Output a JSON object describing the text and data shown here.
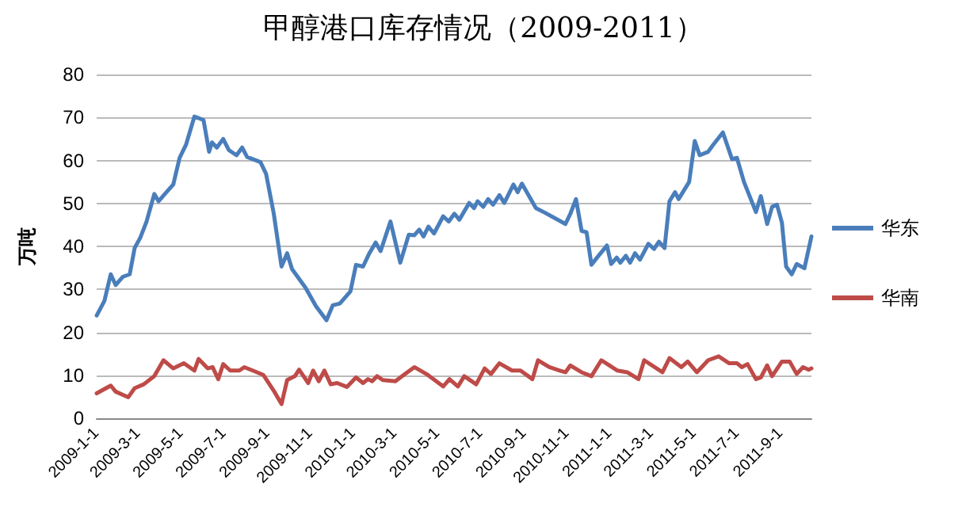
{
  "chart_data": {
    "type": "line",
    "title": "甲醇港口库存情况（2009-2011）",
    "ylabel": "万吨",
    "xlim": [
      "2009-01-01",
      "2011-10-15"
    ],
    "xticks": [
      {
        "value": "2009-01-01",
        "label": "2009-1-1"
      },
      {
        "value": "2009-03-01",
        "label": "2009-3-1"
      },
      {
        "value": "2009-05-01",
        "label": "2009-5-1"
      },
      {
        "value": "2009-07-01",
        "label": "2009-7-1"
      },
      {
        "value": "2009-09-01",
        "label": "2009-9-1"
      },
      {
        "value": "2009-11-01",
        "label": "2009-11-1"
      },
      {
        "value": "2010-01-01",
        "label": "2010-1-1"
      },
      {
        "value": "2010-03-01",
        "label": "2010-3-1"
      },
      {
        "value": "2010-05-01",
        "label": "2010-5-1"
      },
      {
        "value": "2010-07-01",
        "label": "2010-7-1"
      },
      {
        "value": "2010-09-01",
        "label": "2010-9-1"
      },
      {
        "value": "2010-11-01",
        "label": "2010-11-1"
      },
      {
        "value": "2011-01-01",
        "label": "2011-1-1"
      },
      {
        "value": "2011-03-01",
        "label": "2011-3-1"
      },
      {
        "value": "2011-05-01",
        "label": "2011-5-1"
      },
      {
        "value": "2011-07-01",
        "label": "2011-7-1"
      },
      {
        "value": "2011-09-01",
        "label": "2011-9-1"
      }
    ],
    "ylim": [
      0,
      80
    ],
    "yticks": [
      0,
      10,
      20,
      30,
      40,
      50,
      60,
      70,
      80
    ],
    "grid": "y",
    "legend": "right",
    "marker": "none",
    "line_style": "solid",
    "series": [
      {
        "name": "华东",
        "color": "#4a7ebb",
        "x": [
          "2009-01-01",
          "2009-01-12",
          "2009-01-21",
          "2009-01-28",
          "2009-02-07",
          "2009-02-17",
          "2009-02-24",
          "2009-03-04",
          "2009-03-13",
          "2009-03-24",
          "2009-03-30",
          "2009-04-08",
          "2009-04-20",
          "2009-04-29",
          "2009-05-08",
          "2009-05-20",
          "2009-06-02",
          "2009-06-10",
          "2009-06-14",
          "2009-06-21",
          "2009-06-30",
          "2009-07-08",
          "2009-07-19",
          "2009-07-27",
          "2009-08-03",
          "2009-08-22",
          "2009-08-30",
          "2009-09-10",
          "2009-09-21",
          "2009-09-29",
          "2009-10-06",
          "2009-10-25",
          "2009-11-09",
          "2009-11-24",
          "2009-12-03",
          "2009-12-13",
          "2009-12-28",
          "2010-01-05",
          "2010-01-15",
          "2010-01-24",
          "2010-02-02",
          "2010-02-09",
          "2010-02-23",
          "2010-03-09",
          "2010-03-21",
          "2010-03-29",
          "2010-04-05",
          "2010-04-11",
          "2010-04-18",
          "2010-04-26",
          "2010-05-09",
          "2010-05-17",
          "2010-05-25",
          "2010-06-01",
          "2010-06-15",
          "2010-06-22",
          "2010-06-27",
          "2010-07-05",
          "2010-07-12",
          "2010-07-19",
          "2010-07-28",
          "2010-08-04",
          "2010-08-17",
          "2010-08-23",
          "2010-08-29",
          "2010-09-18",
          "2010-09-30",
          "2010-10-30",
          "2010-11-06",
          "2010-11-14",
          "2010-11-22",
          "2010-11-29",
          "2010-12-06",
          "2010-12-14",
          "2010-12-28",
          "2011-01-03",
          "2011-01-11",
          "2011-01-16",
          "2011-01-24",
          "2011-01-30",
          "2011-02-06",
          "2011-02-13",
          "2011-02-25",
          "2011-03-05",
          "2011-03-12",
          "2011-03-20",
          "2011-03-27",
          "2011-04-04",
          "2011-04-09",
          "2011-04-24",
          "2011-05-02",
          "2011-05-09",
          "2011-05-21",
          "2011-05-28",
          "2011-06-11",
          "2011-06-24",
          "2011-07-01",
          "2011-07-11",
          "2011-07-28",
          "2011-08-04",
          "2011-08-13",
          "2011-08-20",
          "2011-08-27",
          "2011-09-03",
          "2011-09-09",
          "2011-09-17",
          "2011-09-24",
          "2011-10-05",
          "2011-10-15"
        ],
        "values": [
          23.9,
          27.3,
          33.5,
          31,
          32.9,
          33.5,
          39.6,
          42,
          45.8,
          52.2,
          50.5,
          52.2,
          54.4,
          60.6,
          63.6,
          70.2,
          69.4,
          62,
          64.2,
          63,
          65,
          62.4,
          61.2,
          63,
          60.8,
          59.6,
          56.9,
          47.6,
          35.3,
          38.4,
          34.7,
          30.4,
          26.1,
          22.8,
          26.3,
          26.7,
          29.5,
          35.7,
          35.3,
          38.4,
          40.9,
          38.9,
          45.8,
          36.2,
          42.7,
          42.6,
          43.9,
          42.3,
          44.6,
          43,
          47,
          45.8,
          47.6,
          46.2,
          50.1,
          48.9,
          50.5,
          49.2,
          51,
          49.7,
          51.9,
          50.1,
          54.4,
          52.6,
          54.6,
          48.9,
          47.9,
          45.2,
          47.6,
          51,
          43.6,
          43.3,
          35.7,
          37.4,
          40.2,
          35.9,
          37.4,
          36.2,
          37.8,
          36.2,
          38.4,
          36.9,
          40.6,
          39.4,
          41.1,
          39.6,
          50.5,
          52.6,
          51,
          55,
          64.5,
          61.2,
          62,
          63.6,
          66.5,
          60.3,
          60.6,
          55,
          48,
          51.7,
          45.2,
          49.2,
          49.7,
          45.5,
          35.3,
          33.5,
          35.9,
          34.9,
          42.3
        ]
      },
      {
        "name": "华南",
        "color": "#be4b48",
        "x": [
          "2009-01-01",
          "2009-01-21",
          "2009-01-28",
          "2009-02-15",
          "2009-02-24",
          "2009-03-09",
          "2009-03-24",
          "2009-04-06",
          "2009-04-20",
          "2009-05-05",
          "2009-05-20",
          "2009-05-26",
          "2009-06-08",
          "2009-06-15",
          "2009-06-23",
          "2009-06-30",
          "2009-07-10",
          "2009-07-23",
          "2009-07-30",
          "2009-08-11",
          "2009-08-26",
          "2009-09-10",
          "2009-09-21",
          "2009-09-29",
          "2009-10-10",
          "2009-10-16",
          "2009-10-29",
          "2009-11-05",
          "2009-11-13",
          "2009-11-21",
          "2009-11-30",
          "2009-12-09",
          "2009-12-23",
          "2010-01-05",
          "2010-01-15",
          "2010-01-22",
          "2010-01-28",
          "2010-02-04",
          "2010-02-12",
          "2010-03-02",
          "2010-03-14",
          "2010-03-29",
          "2010-04-17",
          "2010-05-09",
          "2010-05-18",
          "2010-05-30",
          "2010-06-08",
          "2010-06-25",
          "2010-07-07",
          "2010-07-16",
          "2010-07-28",
          "2010-08-15",
          "2010-08-27",
          "2010-09-13",
          "2010-09-21",
          "2010-10-07",
          "2010-10-22",
          "2010-10-30",
          "2010-11-06",
          "2010-11-22",
          "2010-12-06",
          "2010-12-20",
          "2011-01-12",
          "2011-01-26",
          "2011-02-11",
          "2011-02-19",
          "2011-03-17",
          "2011-03-27",
          "2011-04-13",
          "2011-04-22",
          "2011-05-05",
          "2011-05-21",
          "2011-06-05",
          "2011-06-20",
          "2011-07-01",
          "2011-07-08",
          "2011-07-16",
          "2011-07-28",
          "2011-08-04",
          "2011-08-13",
          "2011-08-20",
          "2011-09-03",
          "2011-09-14",
          "2011-09-24",
          "2011-10-03",
          "2011-10-11",
          "2011-10-15"
        ],
        "values": [
          5.8,
          7.6,
          6.2,
          4.9,
          7,
          7.9,
          9.8,
          13.5,
          11.6,
          12.8,
          11.1,
          13.8,
          11.6,
          11.9,
          9.1,
          12.6,
          11.1,
          11.1,
          11.9,
          11.1,
          10.1,
          6.4,
          3.3,
          8.9,
          9.8,
          11.3,
          8.2,
          11.1,
          8.6,
          11.1,
          7.9,
          8.2,
          7.3,
          9.5,
          8.2,
          9.1,
          8.6,
          9.8,
          8.9,
          8.6,
          10.1,
          11.9,
          10.1,
          7.4,
          9.1,
          7.4,
          9.8,
          7.9,
          11.6,
          10.3,
          12.8,
          11.1,
          11.1,
          9.1,
          13.5,
          11.9,
          11.1,
          10.7,
          12.3,
          10.7,
          9.8,
          13.5,
          11.1,
          10.7,
          9.1,
          13.5,
          10.7,
          14,
          11.9,
          13.2,
          10.7,
          13.5,
          14.4,
          12.8,
          12.8,
          11.9,
          12.6,
          9.1,
          9.5,
          12.3,
          9.8,
          13.2,
          13.2,
          10.3,
          11.9,
          11.3,
          11.6
        ]
      }
    ]
  }
}
